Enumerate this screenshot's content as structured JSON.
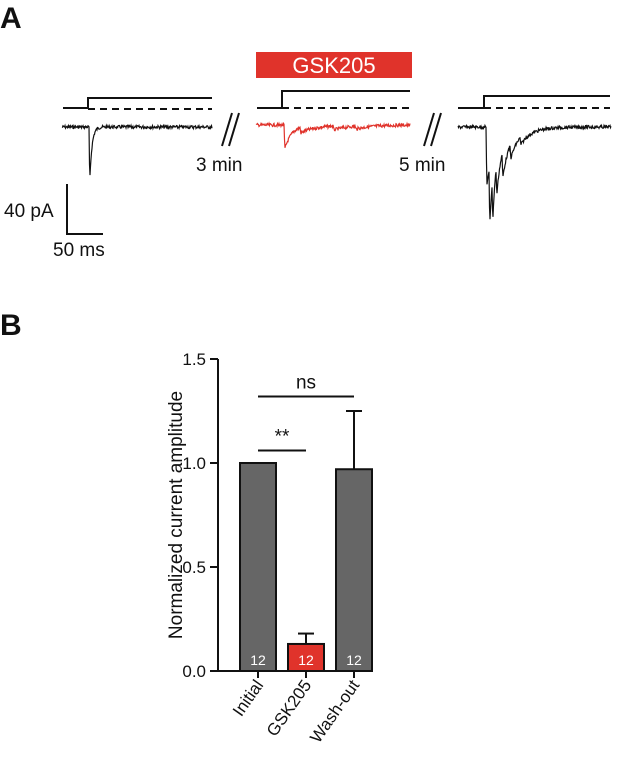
{
  "panel_a": {
    "label": "A",
    "drug_label": "GSK205",
    "interval_1": "3 min",
    "interval_2": "5 min",
    "scale_current": "40 pA",
    "scale_time": "50 ms",
    "colors": {
      "trace": "#111111",
      "drug_trace": "#e0332b",
      "drug_bar": "#e0332b"
    }
  },
  "panel_b": {
    "label": "B"
  },
  "chart_data": {
    "type": "bar",
    "title": "",
    "xlabel": "",
    "ylabel": "Normalized current amplitude",
    "ylim": [
      0,
      1.5
    ],
    "yticks": [
      "0.0",
      "0.5",
      "1.0",
      "1.5"
    ],
    "categories": [
      "Initial",
      "GSK205",
      "Wash-out"
    ],
    "values": [
      1.0,
      0.13,
      0.97
    ],
    "errors": [
      0,
      0.05,
      0.28
    ],
    "n_labels": [
      "12",
      "12",
      "12"
    ],
    "bar_colors": [
      "#666666",
      "#e0332b",
      "#666666"
    ],
    "significance": [
      {
        "pair": [
          0,
          1
        ],
        "label": "**",
        "y": 1.06
      },
      {
        "pair": [
          0,
          2
        ],
        "label": "ns",
        "y": 1.32
      }
    ],
    "grid": false,
    "legend": "none"
  }
}
